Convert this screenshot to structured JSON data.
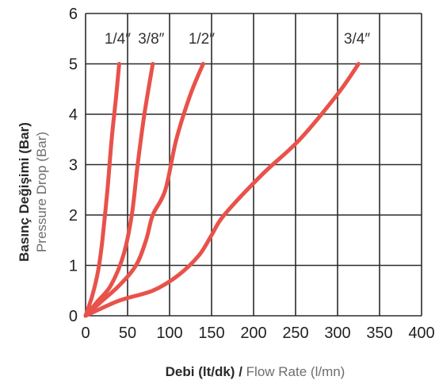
{
  "chart_data": {
    "type": "line",
    "xlabel": {
      "bold": "Debi (lt/dk)",
      "sep": " / ",
      "light": "Flow Rate (l/mn)"
    },
    "ylabel": {
      "bold": "Basınç Değişimi (Bar)",
      "light": "Pressure Drop (Bar)"
    },
    "xlim": [
      0,
      400
    ],
    "ylim": [
      0,
      6
    ],
    "x_ticks": [
      "0",
      "50",
      "100",
      "150",
      "200",
      "250",
      "300",
      "350",
      "400"
    ],
    "y_ticks": [
      "0",
      "1",
      "2",
      "3",
      "4",
      "5",
      "6"
    ],
    "grid": true,
    "color": "#e8524a",
    "series": [
      {
        "name": "1/4″",
        "points": [
          [
            0,
            0
          ],
          [
            8,
            0.4
          ],
          [
            15,
            0.9
          ],
          [
            20,
            1.5
          ],
          [
            26,
            2.5
          ],
          [
            31,
            3.5
          ],
          [
            36,
            4.3
          ],
          [
            40,
            5
          ]
        ]
      },
      {
        "name": "3/8″",
        "points": [
          [
            0,
            0
          ],
          [
            15,
            0.3
          ],
          [
            30,
            0.6
          ],
          [
            45,
            1.2
          ],
          [
            55,
            2.0
          ],
          [
            62,
            3.0
          ],
          [
            70,
            4.0
          ],
          [
            80,
            5
          ]
        ]
      },
      {
        "name": "1/2″",
        "points": [
          [
            0,
            0
          ],
          [
            20,
            0.3
          ],
          [
            40,
            0.6
          ],
          [
            60,
            1.0
          ],
          [
            72,
            1.5
          ],
          [
            80,
            2.0
          ],
          [
            95,
            2.5
          ],
          [
            108,
            3.5
          ],
          [
            125,
            4.4
          ],
          [
            140,
            5
          ]
        ]
      },
      {
        "name": "3/4″",
        "points": [
          [
            0,
            0
          ],
          [
            40,
            0.3
          ],
          [
            80,
            0.5
          ],
          [
            110,
            0.8
          ],
          [
            135,
            1.2
          ],
          [
            150,
            1.6
          ],
          [
            165,
            2.0
          ],
          [
            210,
            2.8
          ],
          [
            255,
            3.5
          ],
          [
            300,
            4.4
          ],
          [
            325,
            5
          ]
        ]
      }
    ]
  }
}
